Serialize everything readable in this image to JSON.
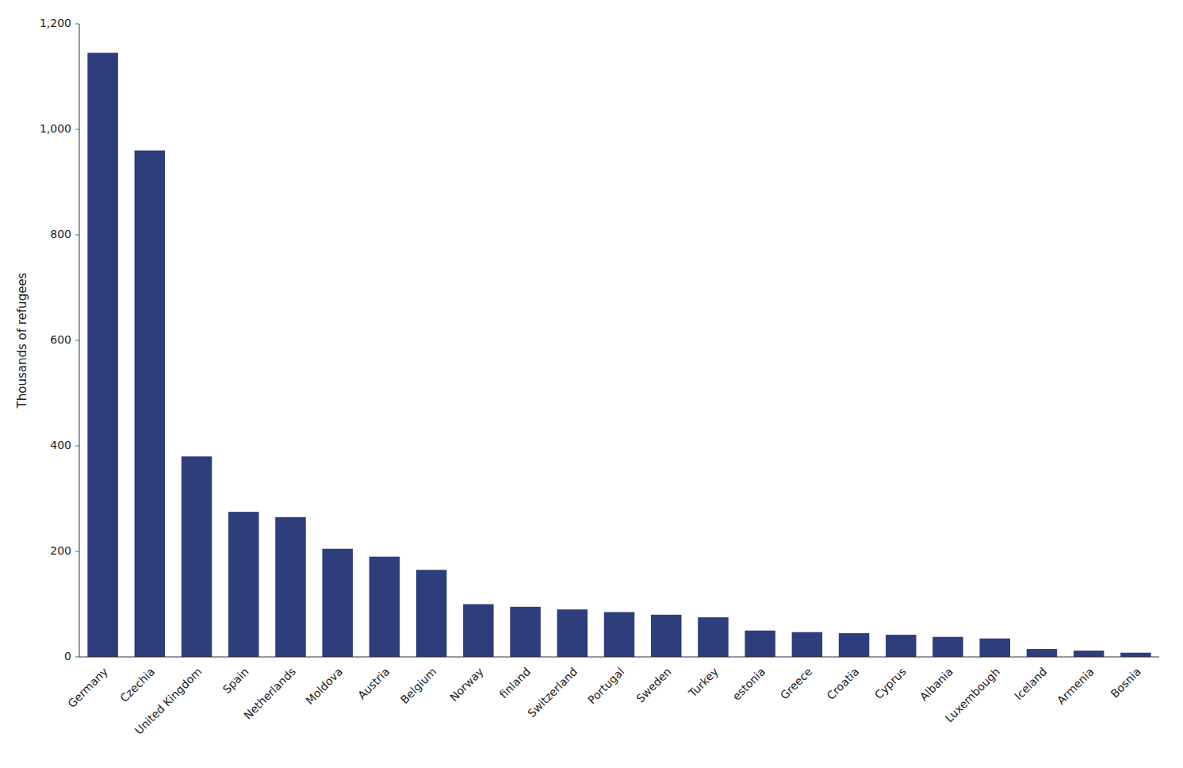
{
  "chart_data": {
    "type": "bar",
    "categories": [
      "Germany",
      "Czechia",
      "United Kingdom",
      "Spain",
      "Netherlands",
      "Moldova",
      "Austria",
      "Belgium",
      "Norway",
      "finland",
      "Switzerland",
      "Portugal",
      "Sweden",
      "Turkey",
      "estonia",
      "Greece",
      "Croatia",
      "Cyprus",
      "Albania",
      "Luxembough",
      "Iceland",
      "Armenia",
      "Bosnia"
    ],
    "values": [
      1145,
      960,
      380,
      275,
      265,
      205,
      190,
      165,
      100,
      95,
      90,
      85,
      80,
      75,
      50,
      47,
      45,
      42,
      38,
      35,
      15,
      12,
      8
    ],
    "color": "#2e3d7c",
    "ylabel": "Thousands of refugees",
    "ylim": [
      0,
      1200
    ],
    "yticks": [
      0,
      200,
      400,
      600,
      800,
      {
        "value": 1000,
        "label": "1,000"
      },
      {
        "value": 1200,
        "label": "1,200"
      }
    ],
    "grid": false
  }
}
